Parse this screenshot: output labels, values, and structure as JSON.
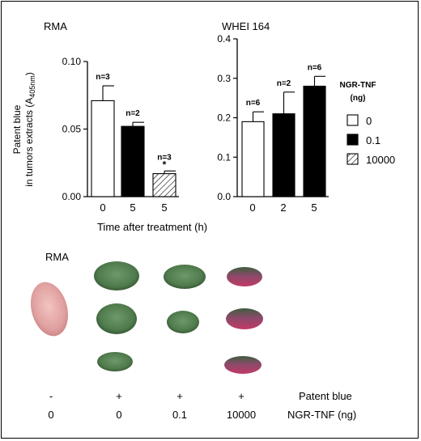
{
  "chart_data": [
    {
      "type": "bar",
      "panel_label": "RMA",
      "categories": [
        "0",
        "5",
        "5"
      ],
      "dose_series": [
        "0",
        "0.1",
        "10000"
      ],
      "values": [
        0.071,
        0.052,
        0.017
      ],
      "errors": [
        0.011,
        0.003,
        0.002
      ],
      "n_labels": [
        "n=3",
        "n=2",
        "n=3"
      ],
      "significance": [
        "",
        "",
        "*"
      ],
      "ylabel_line1": "Patent blue",
      "ylabel_line2": "in tumors extracts (A",
      "ylabel_sub": "405nm",
      "ylabel_close": ")",
      "ylim": [
        0,
        0.1
      ],
      "yticks": [
        "0.00",
        "0.05",
        "0.10"
      ]
    },
    {
      "type": "bar",
      "panel_label": "WHEI 164",
      "categories": [
        "0",
        "2",
        "5"
      ],
      "dose_series": [
        "0",
        "0.1",
        "0.1"
      ],
      "values": [
        0.19,
        0.21,
        0.28
      ],
      "errors": [
        0.025,
        0.055,
        0.025
      ],
      "n_labels": [
        "n=6",
        "n=2",
        "n=6"
      ],
      "significance": [
        "",
        "",
        ""
      ],
      "ylim": [
        0,
        0.4
      ],
      "yticks": [
        "0.0",
        "0.1",
        "0.2",
        "0.3",
        "0.4"
      ]
    }
  ],
  "xlabel": "Time after treatment (h)",
  "legend": {
    "title_line1": "NGR-TNF",
    "title_line2": "(ng)",
    "items": [
      {
        "label": "0",
        "fill": "white"
      },
      {
        "label": "0.1",
        "fill": "black"
      },
      {
        "label": "10000",
        "fill": "hatch"
      }
    ]
  },
  "photo": {
    "panel_label": "RMA",
    "tissue_colors": {
      "unstained": "#e0a0a0",
      "green": "#4f7a4c",
      "magenta": "#b33a62"
    },
    "columns": [
      {
        "patent_blue": "-",
        "ngr_tnf": "0",
        "samples": [
          "pink"
        ]
      },
      {
        "patent_blue": "+",
        "ngr_tnf": "0",
        "samples": [
          "green",
          "green",
          "green"
        ]
      },
      {
        "patent_blue": "+",
        "ngr_tnf": "0.1",
        "samples": [
          "green",
          "green"
        ]
      },
      {
        "patent_blue": "+",
        "ngr_tnf": "10000",
        "samples": [
          "mixed",
          "mixed",
          "mixed"
        ]
      }
    ],
    "row_labels": {
      "patent_blue": "Patent blue",
      "ngr_tnf": "NGR-TNF (ng)"
    }
  }
}
